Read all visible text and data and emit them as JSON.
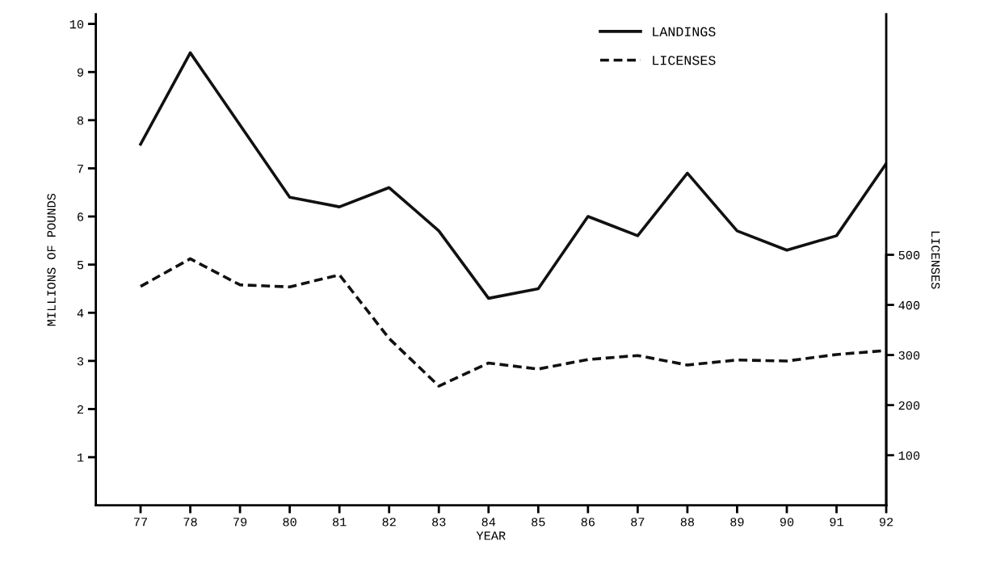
{
  "chart_data": {
    "type": "line",
    "xlabel": "YEAR",
    "ylabel": "MILLIONS OF POUNDS",
    "y2label": "LICENSES",
    "categories": [
      "77",
      "78",
      "79",
      "80",
      "81",
      "82",
      "83",
      "84",
      "85",
      "86",
      "87",
      "88",
      "89",
      "90",
      "91",
      "92"
    ],
    "series": [
      {
        "name": "LANDINGS",
        "color": "#111111",
        "line_style": "solid",
        "values": [
          7.5,
          9.4,
          7.9,
          6.4,
          6.2,
          6.6,
          5.7,
          4.3,
          4.5,
          6.0,
          5.6,
          6.9,
          5.7,
          5.3,
          5.6,
          7.1
        ]
      },
      {
        "name": "LICENSES",
        "color": "#111111",
        "line_style": "dashed",
        "axis": "y2",
        "values": [
          437,
          492,
          440,
          436,
          460,
          333,
          238,
          284,
          272,
          291,
          299,
          280,
          290,
          288,
          301,
          309
        ]
      }
    ],
    "ylim": [
      0,
      10.2
    ],
    "yticks": [
      1,
      2,
      3,
      4,
      5,
      6,
      7,
      8,
      9,
      10
    ],
    "y2lim": [
      0,
      980
    ],
    "y2ticks": [
      100,
      200,
      300,
      400,
      500
    ],
    "legend": "top right",
    "grid": false,
    "marker": "none"
  }
}
